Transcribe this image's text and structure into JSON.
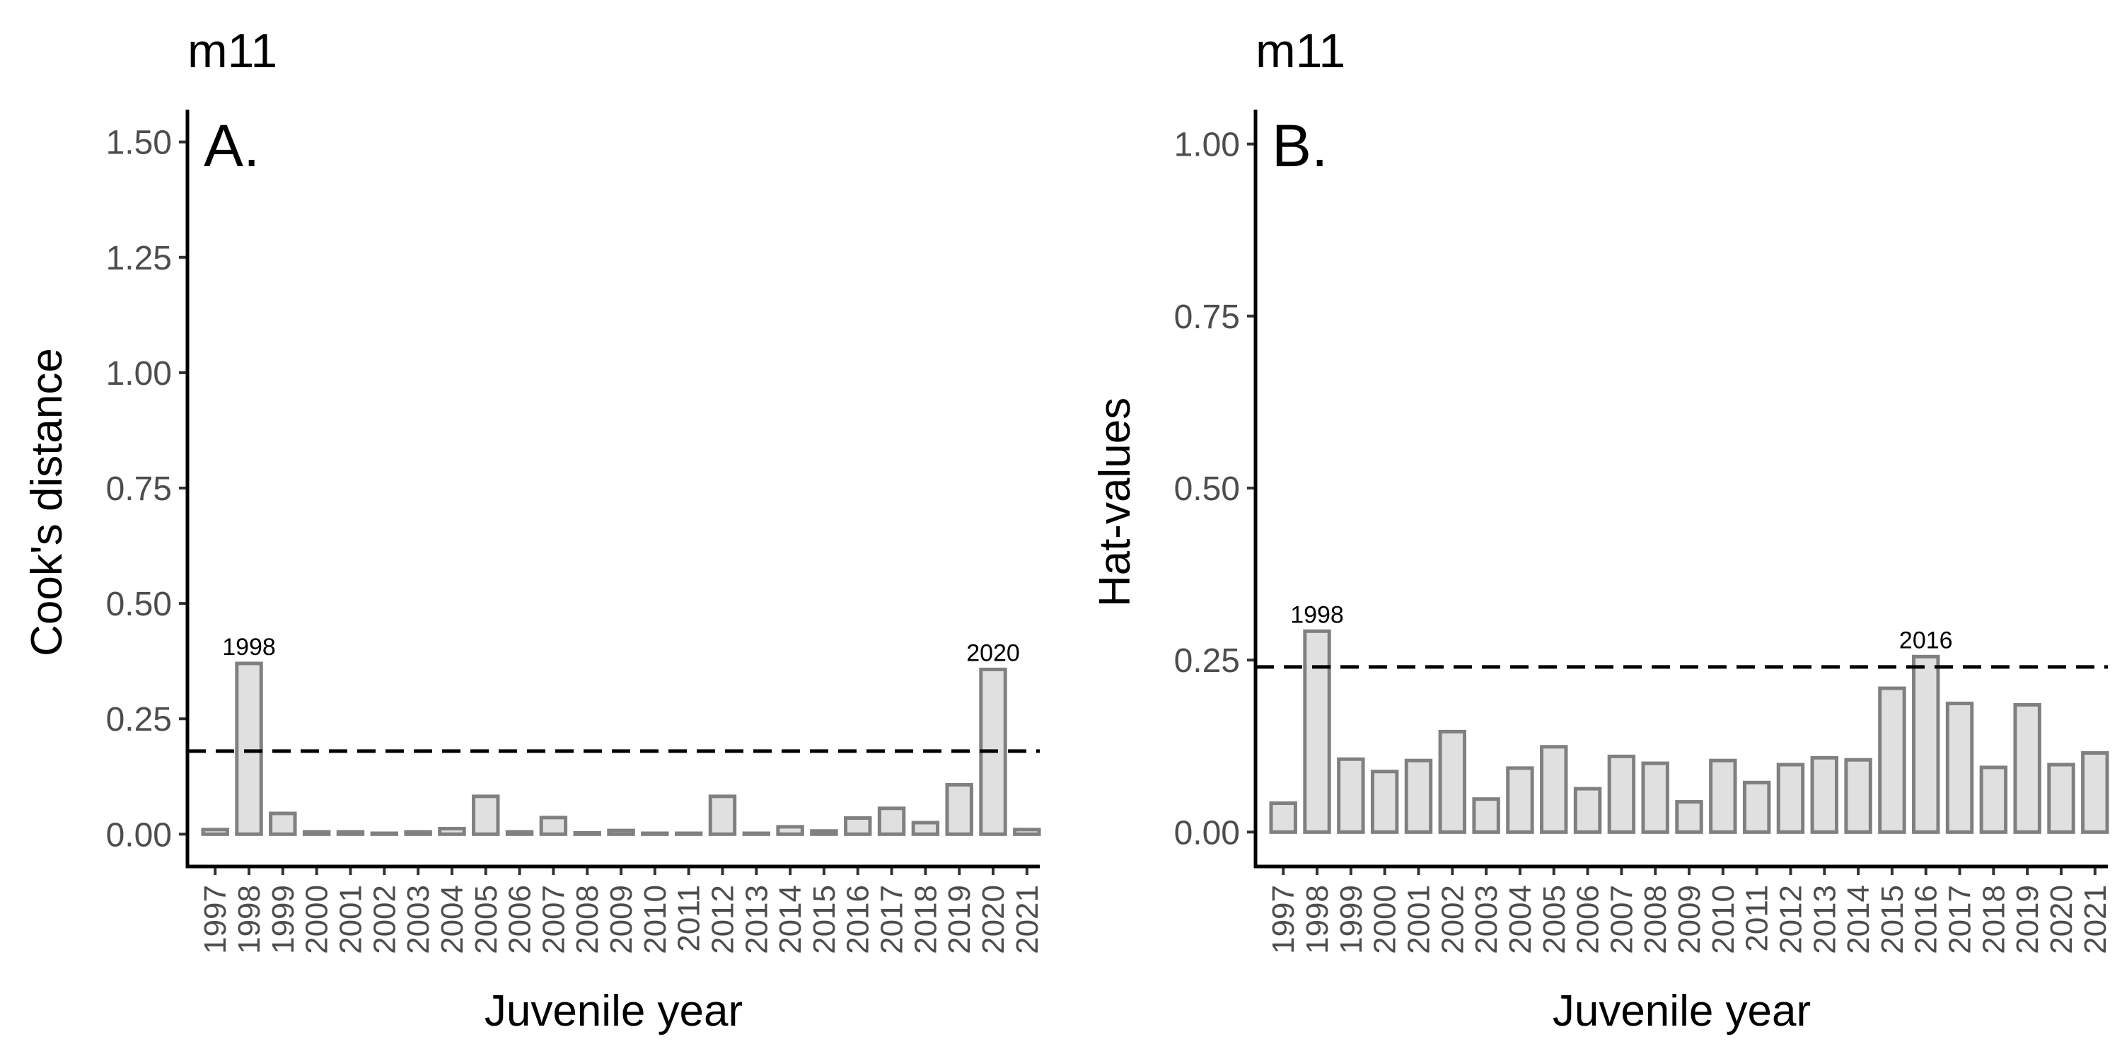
{
  "chart_data": [
    {
      "type": "bar",
      "title": "m11",
      "panel_label": "A.",
      "xlabel": "Juvenile year",
      "ylabel": "Cook's distance",
      "ylim": [
        -0.07,
        1.57
      ],
      "yticks": [
        "0.00",
        "0.25",
        "0.50",
        "0.75",
        "1.00",
        "1.25",
        "1.50"
      ],
      "ytick_values": [
        0,
        0.25,
        0.5,
        0.75,
        1.0,
        1.25,
        1.5
      ],
      "categories": [
        "1997",
        "1998",
        "1999",
        "2000",
        "2001",
        "2002",
        "2003",
        "2004",
        "2005",
        "2006",
        "2007",
        "2008",
        "2009",
        "2010",
        "2011",
        "2012",
        "2013",
        "2014",
        "2015",
        "2016",
        "2017",
        "2018",
        "2019",
        "2020",
        "2021"
      ],
      "values": [
        0.01,
        0.37,
        0.045,
        0.005,
        0.005,
        0.002,
        0.005,
        0.012,
        0.082,
        0.005,
        0.036,
        0.003,
        0.008,
        0.002,
        0.002,
        0.082,
        0.002,
        0.016,
        0.007,
        0.035,
        0.056,
        0.025,
        0.107,
        0.357,
        0.01
      ],
      "threshold": 0.18,
      "annotations": [
        {
          "category": "1998",
          "text": "1998"
        },
        {
          "category": "2020",
          "text": "2020"
        }
      ],
      "grid": false,
      "colors": {
        "bar_fill": "#e0e0e0",
        "bar_stroke": "#808080",
        "axis": "#000000",
        "tick_text": "#4d4d4d"
      }
    },
    {
      "type": "bar",
      "title": "m11",
      "panel_label": "B.",
      "xlabel": "Juvenile year",
      "ylabel": "Hat-values",
      "ylim": [
        -0.05,
        1.05
      ],
      "yticks": [
        "0.00",
        "0.25",
        "0.50",
        "0.75",
        "1.00"
      ],
      "ytick_values": [
        0,
        0.25,
        0.5,
        0.75,
        1.0
      ],
      "categories": [
        "1997",
        "1998",
        "1999",
        "2000",
        "2001",
        "2002",
        "2003",
        "2004",
        "2005",
        "2006",
        "2007",
        "2008",
        "2009",
        "2010",
        "2011",
        "2012",
        "2013",
        "2014",
        "2015",
        "2016",
        "2017",
        "2018",
        "2019",
        "2020",
        "2021"
      ],
      "values": [
        0.042,
        0.292,
        0.106,
        0.088,
        0.104,
        0.146,
        0.048,
        0.093,
        0.124,
        0.063,
        0.11,
        0.1,
        0.044,
        0.104,
        0.072,
        0.098,
        0.108,
        0.105,
        0.209,
        0.255,
        0.187,
        0.094,
        0.185,
        0.098,
        0.115
      ],
      "threshold": 0.24,
      "annotations": [
        {
          "category": "1998",
          "text": "1998"
        },
        {
          "category": "2016",
          "text": "2016"
        }
      ],
      "grid": false,
      "colors": {
        "bar_fill": "#e0e0e0",
        "bar_stroke": "#808080",
        "axis": "#000000",
        "tick_text": "#4d4d4d"
      }
    }
  ]
}
